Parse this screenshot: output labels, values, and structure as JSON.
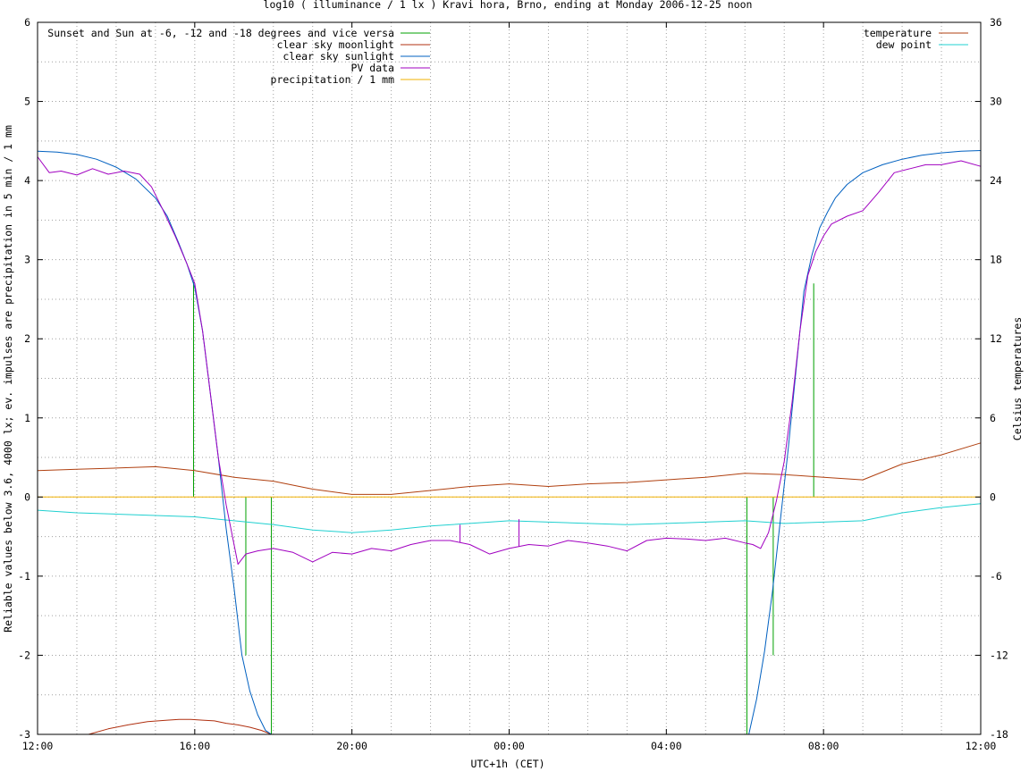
{
  "chart_data": {
    "type": "line",
    "title": "log10 ( illuminance / 1 lx ) Kravi hora, Brno, ending at Monday 2006-12-25 noon",
    "xlabel": "UTC+1h (CET)",
    "ylabel": "Reliable values below 3.6, 4000 lx; ev. impulses are precipitation in 5 min / 1 mm",
    "y2label": "Celsius temperatures",
    "x_range": [
      0,
      24
    ],
    "xtick_labels": [
      "12:00",
      "16:00",
      "20:00",
      "00:00",
      "04:00",
      "08:00",
      "12:00"
    ],
    "ylim": [
      -3,
      6
    ],
    "y2lim": [
      -18,
      36
    ],
    "ytick_labels": [
      "-3",
      "-2",
      "-1",
      "0",
      "1",
      "2",
      "3",
      "4",
      "5",
      "6"
    ],
    "y2tick_labels": [
      "-18",
      "-12",
      "-6",
      "0",
      "6",
      "12",
      "18",
      "24",
      "30",
      "36"
    ],
    "grid": true,
    "legend_left": [
      {
        "label": "Sunset and Sun at -6, -12 and -18 degrees and vice versa",
        "color": "#00a000"
      },
      {
        "label": "clear sky moonlight",
        "color": "#b03010"
      },
      {
        "label": "clear sky sunlight",
        "color": "#0060c0"
      },
      {
        "label": "PV data",
        "color": "#a000c0"
      },
      {
        "label": "precipitation / 1 mm",
        "color": "#f0b000"
      }
    ],
    "legend_right": [
      {
        "label": "temperature",
        "color": "#b04010"
      },
      {
        "label": "dew point",
        "color": "#20d0d0"
      }
    ],
    "series": [
      {
        "name": "clear sky sunlight",
        "color": "#0060c0",
        "x": [
          0,
          0.5,
          1,
          1.5,
          2,
          2.5,
          3,
          3.3,
          3.6,
          3.8,
          4.0,
          4.2,
          4.4,
          4.6,
          4.8,
          5.0,
          5.2,
          5.4,
          5.6,
          5.8,
          5.95,
          18.1,
          18.3,
          18.5,
          18.7,
          18.9,
          19.1,
          19.3,
          19.5,
          19.7,
          19.9,
          20.1,
          20.3,
          20.6,
          21,
          21.5,
          22,
          22.5,
          23,
          23.5,
          24
        ],
        "y": [
          4.37,
          4.36,
          4.33,
          4.27,
          4.17,
          4.02,
          3.78,
          3.55,
          3.2,
          2.95,
          2.65,
          2.1,
          1.3,
          0.5,
          -0.4,
          -1.15,
          -2.0,
          -2.45,
          -2.75,
          -2.95,
          -3.0,
          -3.0,
          -2.55,
          -1.95,
          -1.2,
          -0.3,
          0.6,
          1.6,
          2.6,
          3.05,
          3.4,
          3.6,
          3.78,
          3.95,
          4.1,
          4.2,
          4.27,
          4.32,
          4.35,
          4.37,
          4.38
        ]
      },
      {
        "name": "PV data",
        "color": "#a000c0",
        "x": [
          0,
          0.3,
          0.6,
          1,
          1.4,
          1.8,
          2.2,
          2.6,
          2.9,
          3.2,
          3.5,
          3.8,
          4.0,
          4.2,
          4.4,
          4.6,
          4.8,
          5.0,
          5.1,
          5.3,
          5.6,
          6,
          6.5,
          7,
          7.5,
          8,
          8.5,
          9,
          9.5,
          10,
          10.5,
          11,
          11.5,
          12,
          12.5,
          13,
          13.5,
          14,
          14.5,
          15,
          15.5,
          16,
          16.5,
          17,
          17.5,
          18,
          18.2,
          18.4,
          18.6,
          18.8,
          19.0,
          19.2,
          19.4,
          19.6,
          19.8,
          20.0,
          20.2,
          20.6,
          21,
          21.4,
          21.8,
          22.2,
          22.6,
          23,
          23.5,
          24
        ],
        "y": [
          4.3,
          4.1,
          4.12,
          4.07,
          4.15,
          4.08,
          4.12,
          4.08,
          3.92,
          3.62,
          3.3,
          2.95,
          2.7,
          2.1,
          1.3,
          0.5,
          -0.1,
          -0.6,
          -0.85,
          -0.72,
          -0.68,
          -0.65,
          -0.7,
          -0.82,
          -0.7,
          -0.72,
          -0.65,
          -0.68,
          -0.6,
          -0.55,
          -0.55,
          -0.6,
          -0.72,
          -0.65,
          -0.6,
          -0.62,
          -0.55,
          -0.58,
          -0.62,
          -0.68,
          -0.55,
          -0.52,
          -0.53,
          -0.55,
          -0.52,
          -0.58,
          -0.6,
          -0.65,
          -0.45,
          -0.05,
          0.45,
          1.2,
          2.1,
          2.8,
          3.1,
          3.3,
          3.45,
          3.55,
          3.62,
          3.85,
          4.1,
          4.15,
          4.2,
          4.2,
          4.25,
          4.18
        ]
      },
      {
        "name": "clear sky moonlight",
        "color": "#b03010",
        "x": [
          1.3,
          1.8,
          2.3,
          2.8,
          3.3,
          3.6,
          3.9,
          4.2,
          4.5,
          4.8,
          5.1,
          5.4,
          5.7,
          5.95
        ],
        "y": [
          -3.0,
          -2.93,
          -2.88,
          -2.84,
          -2.82,
          -2.81,
          -2.81,
          -2.82,
          -2.83,
          -2.86,
          -2.88,
          -2.91,
          -2.95,
          -3.0
        ]
      },
      {
        "name": "temperature",
        "axis": "y2",
        "color": "#b04010",
        "x": [
          0,
          1,
          2,
          3,
          4,
          5,
          6,
          7,
          8,
          9,
          10,
          11,
          12,
          13,
          14,
          15,
          16,
          17,
          18,
          19,
          20,
          21,
          22,
          23,
          24
        ],
        "y": [
          2.0,
          2.1,
          2.2,
          2.3,
          2.0,
          1.5,
          1.2,
          0.6,
          0.2,
          0.2,
          0.5,
          0.8,
          1.0,
          0.8,
          1.0,
          1.1,
          1.3,
          1.5,
          1.8,
          1.7,
          1.5,
          1.3,
          2.5,
          3.2,
          4.1
        ]
      },
      {
        "name": "dew point",
        "axis": "y2",
        "color": "#20d0d0",
        "x": [
          0,
          1,
          2,
          3,
          4,
          5,
          6,
          7,
          8,
          9,
          10,
          11,
          12,
          13,
          14,
          15,
          16,
          17,
          18,
          19,
          20,
          21,
          22,
          23,
          24
        ],
        "y": [
          -1.0,
          -1.2,
          -1.3,
          -1.4,
          -1.5,
          -1.8,
          -2.1,
          -2.5,
          -2.7,
          -2.5,
          -2.2,
          -2.0,
          -1.8,
          -1.9,
          -2.0,
          -2.1,
          -2.0,
          -1.9,
          -1.8,
          -2.0,
          -1.9,
          -1.8,
          -1.2,
          -0.8,
          -0.5
        ]
      },
      {
        "name": "precipitation / 1 mm",
        "color": "#f0b000",
        "x": [
          0,
          24
        ],
        "y": [
          0,
          0
        ]
      }
    ],
    "sun_markers": {
      "name": "Sunset and Sun at -6, -12 and -18 degrees and vice versa",
      "color": "#00a000",
      "x": [
        3.97,
        5.3,
        5.95,
        18.05,
        18.72,
        19.1,
        19.75
      ],
      "y": [
        2.72,
        -2.0,
        -3.0,
        -3.0,
        -2.0,
        0.0,
        2.7
      ]
    },
    "pv_spikes": {
      "x": [
        10.75,
        12.25
      ],
      "y": [
        -0.35,
        -0.28
      ]
    }
  }
}
